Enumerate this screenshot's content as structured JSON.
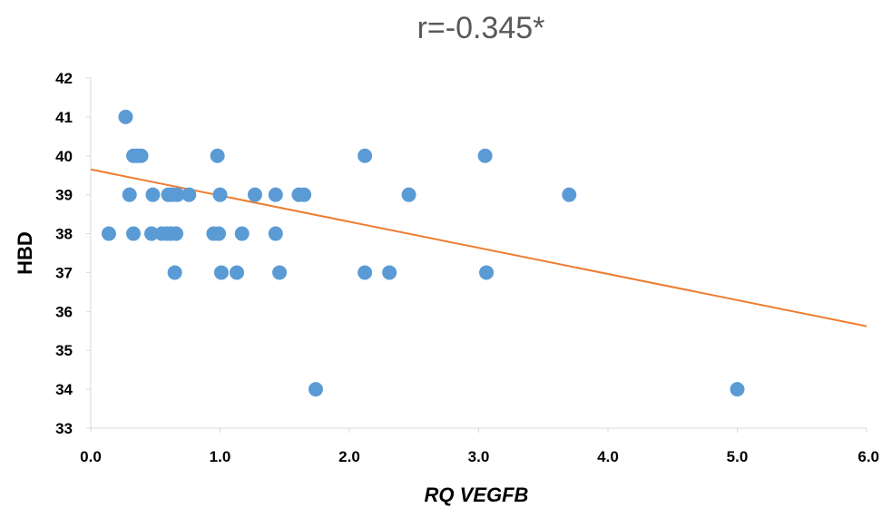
{
  "chart_data": {
    "type": "scatter",
    "title": "r=-0.345*",
    "xlabel": "RQ VEGFB",
    "ylabel": "HBD",
    "xlim": [
      0,
      6
    ],
    "ylim": [
      33,
      42
    ],
    "x_ticks": [
      "0.0",
      "1.0",
      "2.0",
      "3.0",
      "4.0",
      "5.0",
      "6.0"
    ],
    "y_ticks": [
      "33",
      "34",
      "35",
      "36",
      "37",
      "38",
      "39",
      "40",
      "41",
      "42"
    ],
    "grid": false,
    "marker_color": "#5B9BD5",
    "trendline_color": "#ED7D31",
    "trendline": {
      "x": [
        0,
        6
      ],
      "y": [
        39.65,
        35.62
      ]
    },
    "series": [
      {
        "points": [
          [
            0.27,
            41
          ],
          [
            0.33,
            40
          ],
          [
            0.36,
            40
          ],
          [
            0.39,
            40
          ],
          [
            0.98,
            40
          ],
          [
            2.12,
            40
          ],
          [
            3.05,
            40
          ],
          [
            0.3,
            39
          ],
          [
            0.48,
            39
          ],
          [
            0.6,
            39
          ],
          [
            0.63,
            39
          ],
          [
            0.67,
            39
          ],
          [
            0.76,
            39
          ],
          [
            1.0,
            39
          ],
          [
            1.27,
            39
          ],
          [
            1.43,
            39
          ],
          [
            1.61,
            39
          ],
          [
            1.65,
            39
          ],
          [
            2.46,
            39
          ],
          [
            3.7,
            39
          ],
          [
            0.14,
            38
          ],
          [
            0.33,
            38
          ],
          [
            0.47,
            38
          ],
          [
            0.55,
            38
          ],
          [
            0.59,
            38
          ],
          [
            0.62,
            38
          ],
          [
            0.66,
            38
          ],
          [
            0.95,
            38
          ],
          [
            0.99,
            38
          ],
          [
            1.17,
            38
          ],
          [
            1.43,
            38
          ],
          [
            0.65,
            37
          ],
          [
            1.01,
            37
          ],
          [
            1.13,
            37
          ],
          [
            1.46,
            37
          ],
          [
            2.12,
            37
          ],
          [
            2.31,
            37
          ],
          [
            3.06,
            37
          ],
          [
            1.74,
            34
          ],
          [
            5.0,
            34
          ]
        ]
      }
    ]
  }
}
